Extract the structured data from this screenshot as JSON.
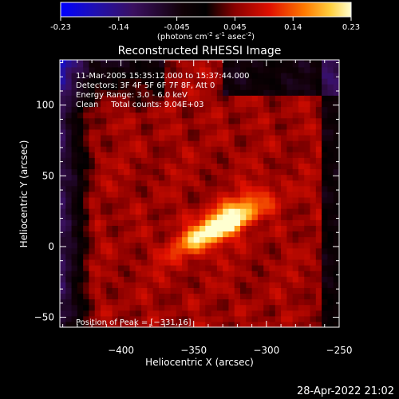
{
  "colorbar": {
    "ticks": [
      "-0.23",
      "-0.14",
      "-0.045",
      "0.045",
      "0.14",
      "0.23"
    ],
    "units": "(photons cm",
    "units_exp1": "-2",
    "units_mid": " s",
    "units_exp2": "-1",
    "units_end": " asec",
    "units_exp3": "-2",
    "units_close": ")",
    "range": [
      -0.23,
      0.23
    ]
  },
  "colors": {
    "background": "#000000",
    "foreground": "#ffffff",
    "colormap": [
      "#0000ff",
      "#2a0a8a",
      "#3a1060",
      "#000000",
      "#b00000",
      "#ff3000",
      "#ff9000",
      "#ffe060",
      "#ffffff"
    ]
  },
  "footer": {
    "timestamp": "28-Apr-2022 21:02"
  },
  "chart_data": {
    "type": "heatmap",
    "title": "Reconstructed RHESSI Image",
    "xlabel": "Heliocentric X (arcsec)",
    "ylabel": "Heliocentric Y (arcsec)",
    "xlim": [
      -442,
      -250
    ],
    "ylim": [
      -57,
      132
    ],
    "xticks": [
      -400,
      -350,
      -300,
      -250
    ],
    "yticks": [
      -50,
      0,
      50,
      100
    ],
    "xtick_labels": [
      "−400",
      "−350",
      "−300",
      "−250"
    ],
    "ytick_labels": [
      "−50",
      "0",
      "50",
      "100"
    ],
    "peak": {
      "x": -331,
      "y": 16
    },
    "annotations": [
      "11-Mar-2005 15:35:12.000 to 15:37:44.000",
      "Detectors: 3F 4F 5F 6F 7F 8F, Att 0",
      "Energy Range: 3.0 - 6.0 keV",
      "Clean     Total counts: 9.04E+03"
    ],
    "peak_label": "Position of Peak = [−331,16]"
  }
}
